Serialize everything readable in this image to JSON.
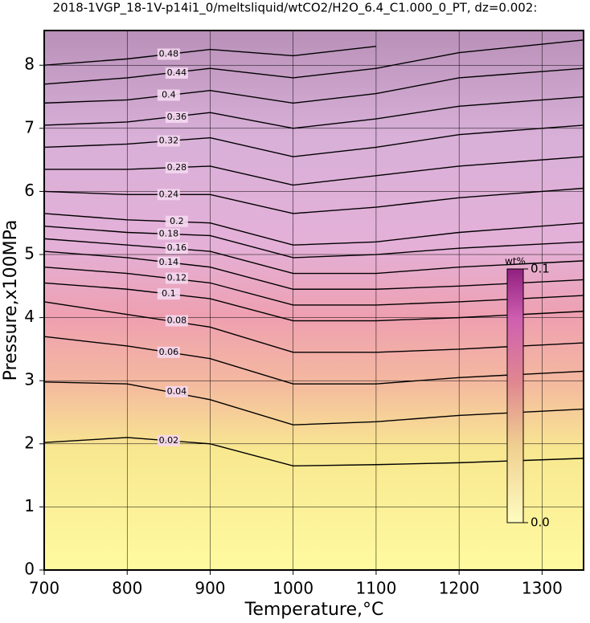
{
  "chart_data": {
    "type": "contour",
    "title": "2018-1VGP_18-1V-p14i1_0/meltsliquid/wtCO2/H2O_6.4_C1.000_0_PT, dz=0.002:",
    "x_label": "Temperature,°C",
    "y_label": "Pressure,x100MPa",
    "xlim": [
      700,
      1350
    ],
    "ylim": [
      0,
      8.55
    ],
    "xticks": [
      700,
      800,
      900,
      1000,
      1100,
      1200,
      1300
    ],
    "yticks": [
      0,
      1,
      2,
      3,
      4,
      5,
      6,
      7,
      8
    ],
    "grid": true,
    "colorbar": {
      "label": "wt%",
      "ticks": [
        {
          "value": 0,
          "label": "0.0"
        },
        {
          "value": 0.1,
          "label": "0.1"
        }
      ]
    },
    "x": [
      700,
      800,
      900,
      1000,
      1100,
      1200,
      1350
    ],
    "series": [
      {
        "name": "0.02",
        "color": "#000000",
        "values": [
          2.02,
          2.1,
          2.0,
          1.65,
          1.67,
          1.7,
          1.77
        ]
      },
      {
        "name": "0.04",
        "color": "#000000",
        "values": [
          2.98,
          2.95,
          2.7,
          2.3,
          2.35,
          2.45,
          2.55
        ]
      },
      {
        "name": "0.06",
        "color": "#000000",
        "values": [
          3.7,
          3.55,
          3.35,
          2.95,
          2.95,
          3.05,
          3.15
        ]
      },
      {
        "name": "0.08",
        "color": "#000000",
        "values": [
          4.25,
          4.05,
          3.85,
          3.45,
          3.45,
          3.5,
          3.6
        ]
      },
      {
        "name": "0.1",
        "color": "#000000",
        "values": [
          4.55,
          4.45,
          4.3,
          3.95,
          3.95,
          4.0,
          4.1
        ]
      },
      {
        "name": "0.12",
        "color": "#000000",
        "values": [
          4.8,
          4.7,
          4.55,
          4.2,
          4.2,
          4.25,
          4.35
        ]
      },
      {
        "name": "0.14",
        "color": "#000000",
        "values": [
          5.05,
          4.95,
          4.8,
          4.45,
          4.45,
          4.5,
          4.6
        ]
      },
      {
        "name": "0.16",
        "color": "#000000",
        "values": [
          5.25,
          5.15,
          5.05,
          4.7,
          4.7,
          4.8,
          4.9
        ]
      },
      {
        "name": "0.18",
        "color": "#000000",
        "values": [
          5.45,
          5.35,
          5.3,
          4.95,
          5.0,
          5.1,
          5.2
        ]
      },
      {
        "name": "0.2",
        "color": "#000000",
        "values": [
          5.65,
          5.55,
          5.5,
          5.15,
          5.2,
          5.35,
          5.5
        ]
      },
      {
        "name": "0.24",
        "color": "#000000",
        "values": [
          6.0,
          5.95,
          5.95,
          5.65,
          5.75,
          5.9,
          6.05
        ]
      },
      {
        "name": "0.28",
        "color": "#000000",
        "values": [
          6.35,
          6.35,
          6.4,
          6.1,
          6.25,
          6.4,
          6.55
        ]
      },
      {
        "name": "0.32",
        "color": "#000000",
        "values": [
          6.7,
          6.75,
          6.85,
          6.55,
          6.7,
          6.9,
          7.05
        ]
      },
      {
        "name": "0.36",
        "color": "#000000",
        "values": [
          7.05,
          7.1,
          7.25,
          7.0,
          7.15,
          7.35,
          7.5
        ]
      },
      {
        "name": "0.4",
        "color": "#000000",
        "values": [
          7.4,
          7.45,
          7.6,
          7.4,
          7.55,
          7.8,
          7.95
        ]
      },
      {
        "name": "0.44",
        "color": "#000000",
        "values": [
          7.7,
          7.8,
          7.95,
          7.8,
          7.95,
          8.2,
          8.4
        ]
      },
      {
        "name": "0.48",
        "color": "#000000",
        "values": [
          8.0,
          8.1,
          8.25,
          8.15,
          8.3,
          null,
          null
        ]
      }
    ]
  }
}
